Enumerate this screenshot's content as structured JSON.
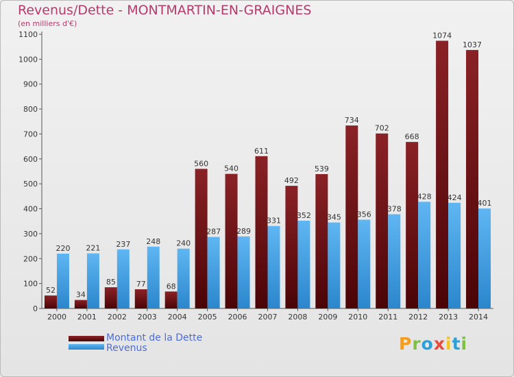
{
  "header": {
    "title": "Revenus/Dette - MONTMARTIN-EN-GRAIGNES",
    "subtitle": "(en milliers d'€)"
  },
  "legend": {
    "dette_label": "Montant de la Dette",
    "revenus_label": "Revenus"
  },
  "logo": {
    "text": "Proxiti"
  },
  "colors": {
    "dette": "#6e1116",
    "revenus": "#3e9ee6",
    "title": "#b53a6a",
    "legend_text": "#4d6dd6"
  },
  "chart_data": {
    "type": "bar",
    "title": "Revenus/Dette - MONTMARTIN-EN-GRAIGNES",
    "ylabel": "(en milliers d'€)",
    "xlabel": "",
    "ylim": [
      0,
      1100
    ],
    "yticks": [
      0,
      100,
      200,
      300,
      400,
      500,
      600,
      700,
      800,
      900,
      1000,
      1100
    ],
    "grid": false,
    "legend_position": "bottom-left",
    "categories": [
      "2000",
      "2001",
      "2002",
      "2003",
      "2004",
      "2005",
      "2006",
      "2007",
      "2008",
      "2009",
      "2010",
      "2011",
      "2012",
      "2013",
      "2014"
    ],
    "series": [
      {
        "name": "Montant de la Dette",
        "values": [
          52,
          34,
          85,
          77,
          68,
          560,
          540,
          611,
          492,
          539,
          734,
          702,
          668,
          1074,
          1037
        ]
      },
      {
        "name": "Revenus",
        "values": [
          220,
          221,
          237,
          248,
          240,
          287,
          289,
          331,
          352,
          345,
          356,
          378,
          428,
          424,
          401
        ]
      }
    ]
  }
}
